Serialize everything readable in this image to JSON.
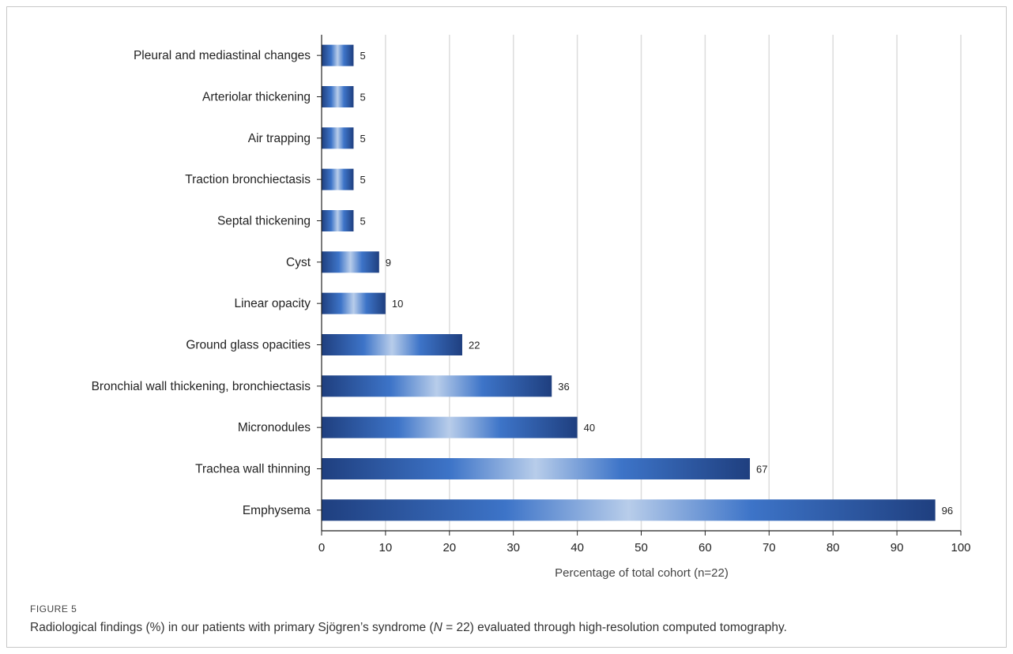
{
  "chart_data": {
    "type": "bar",
    "orientation": "horizontal",
    "categories": [
      "Pleural and mediastinal changes",
      "Arteriolar thickening",
      "Air trapping",
      "Traction bronchiectasis",
      "Septal thickening",
      "Cyst",
      "Linear opacity",
      "Ground glass opacities",
      "Bronchial wall thickening, bronchiectasis",
      "Micronodules",
      "Trachea wall thinning",
      "Emphysema"
    ],
    "values": [
      5,
      5,
      5,
      5,
      5,
      9,
      10,
      22,
      36,
      40,
      67,
      96
    ],
    "data_labels": [
      "5",
      "5",
      "5",
      "5",
      "5",
      "9",
      "10",
      "22",
      "36",
      "40",
      "67",
      "96"
    ],
    "xlabel": "Percentage of total cohort (n=22)",
    "ylabel": "",
    "xlim": [
      0,
      100
    ],
    "x_ticks": [
      "0",
      "10",
      "20",
      "30",
      "40",
      "50",
      "60",
      "70",
      "80",
      "90",
      "100"
    ],
    "grid": "vertical",
    "legend": "none",
    "colors": {
      "bar_dark": "#1f3f7f",
      "bar_mid": "#3d74c8",
      "bar_light": "#b8cdea",
      "grid": "#dcdcdc",
      "axis": "#222222"
    }
  },
  "caption": {
    "label": "FIGURE 5",
    "text_before": "Radiological findings (%) in our patients with primary Sjögren’s syndrome (",
    "text_italic": "N",
    "text_after": " = 22) evaluated through high-resolution computed tomography."
  }
}
